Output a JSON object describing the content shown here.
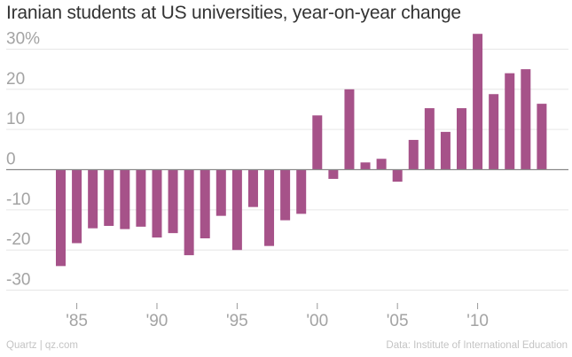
{
  "chart_data": {
    "type": "bar",
    "title": "Iranian students at US universities, year-on-year change",
    "xlabel": "",
    "ylabel": "",
    "categories": [
      1984,
      1985,
      1986,
      1987,
      1988,
      1989,
      1990,
      1991,
      1992,
      1993,
      1994,
      1995,
      1996,
      1997,
      1998,
      1999,
      2000,
      2001,
      2002,
      2003,
      2004,
      2005,
      2006,
      2007,
      2008,
      2009,
      2010,
      2011,
      2012,
      2013,
      2014
    ],
    "values": [
      -24.0,
      -18.3,
      -14.6,
      -14.0,
      -14.8,
      -14.2,
      -16.9,
      -15.8,
      -21.3,
      -17.1,
      -11.5,
      -20.0,
      -9.3,
      -19.0,
      -12.6,
      -11.0,
      13.5,
      -2.3,
      20.0,
      1.8,
      2.7,
      -3.0,
      7.4,
      15.3,
      9.4,
      15.3,
      33.8,
      18.8,
      24.0,
      25.0,
      16.4
    ],
    "ylim": [
      -32,
      33
    ],
    "y_ticks": [
      30,
      20,
      10,
      0,
      -10,
      -20,
      -30
    ],
    "y_tick_labels": [
      "30%",
      "20",
      "10",
      "0",
      "-10",
      "-20",
      "-30"
    ],
    "x_ticks": [
      1985,
      1990,
      1995,
      2000,
      2005,
      2010
    ],
    "x_tick_labels": [
      "'85",
      "'90",
      "'95",
      "'00",
      "'05",
      "'10"
    ],
    "bar_color": "#a65289",
    "grid": true,
    "grid_color": "#e6e6e6",
    "zero_line_color": "#8a8a8a"
  },
  "footer": {
    "source_left": "Quartz | qz.com",
    "source_right": "Data: Institute of International Education"
  }
}
